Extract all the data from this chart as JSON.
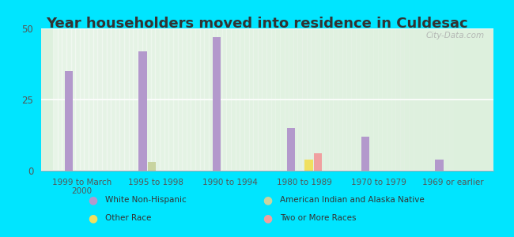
{
  "title": "Year householders moved into residence in Culdesac",
  "categories": [
    "1999 to March\n2000",
    "1995 to 1998",
    "1990 to 1994",
    "1980 to 1989",
    "1970 to 1979",
    "1969 or earlier"
  ],
  "series": {
    "White Non-Hispanic": {
      "values": [
        35,
        42,
        47,
        15,
        12,
        4
      ],
      "color": "#b399cc"
    },
    "American Indian and Alaska Native": {
      "values": [
        0,
        3,
        0,
        0,
        0,
        0
      ],
      "color": "#c8d4a0"
    },
    "Other Race": {
      "values": [
        0,
        0,
        0,
        4,
        0,
        0
      ],
      "color": "#f0e060"
    },
    "Two or More Races": {
      "values": [
        0,
        0,
        0,
        6,
        0,
        0
      ],
      "color": "#f0a0a0"
    }
  },
  "ylim": [
    0,
    50
  ],
  "yticks": [
    0,
    25,
    50
  ],
  "plot_bg_color": "#ddf0dd",
  "outer_background": "#00e5ff",
  "bar_width": 0.12,
  "watermark": "City-Data.com",
  "title_color": "#333333",
  "title_fontsize": 13,
  "legend_entries_col1": [
    {
      "label": "White Non-Hispanic",
      "color": "#b399cc"
    },
    {
      "label": "Other Race",
      "color": "#f0e060"
    }
  ],
  "legend_entries_col2": [
    {
      "label": "American Indian and Alaska Native",
      "color": "#c8d4a0"
    },
    {
      "label": "Two or More Races",
      "color": "#f0a0a0"
    }
  ]
}
